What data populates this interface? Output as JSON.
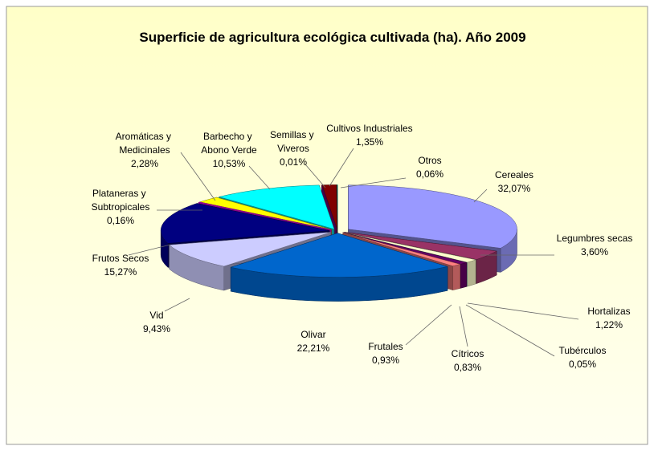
{
  "chart_data": {
    "type": "pie3d",
    "title": "Superficie de  agricultura ecológica cultivada (ha). Año 2009",
    "categories": [
      "Cereales",
      "Legumbres secas",
      "Hortalizas",
      "Tubérculos",
      "Cítricos",
      "Frutales",
      "Olivar",
      "Vid",
      "Frutos Secos",
      "Plataneras y Subtropicales",
      "Aromáticas y Medicinales",
      "Barbecho y Abono Verde",
      "Semillas y Viveros",
      "Cultivos Industriales",
      "Otros"
    ],
    "values": [
      32.07,
      3.6,
      1.22,
      0.05,
      0.83,
      0.93,
      22.21,
      9.43,
      15.27,
      0.16,
      2.28,
      10.53,
      0.01,
      1.35,
      0.06
    ],
    "value_labels": [
      "32,07%",
      "3,60%",
      "1,22%",
      "0,05%",
      "0,83%",
      "0,93%",
      "22,21%",
      "9,43%",
      "15,27%",
      "0,16%",
      "2,28%",
      "10,53%",
      "0,01%",
      "1,35%",
      "0,06%"
    ],
    "colors": [
      "#9999ff",
      "#993366",
      "#ffffcc",
      "#ccffff",
      "#660066",
      "#ff8080",
      "#0066cc",
      "#ccccff",
      "#000080",
      "#ff00ff",
      "#ffff00",
      "#00ffff",
      "#800080",
      "#800000",
      "#008080"
    ]
  }
}
